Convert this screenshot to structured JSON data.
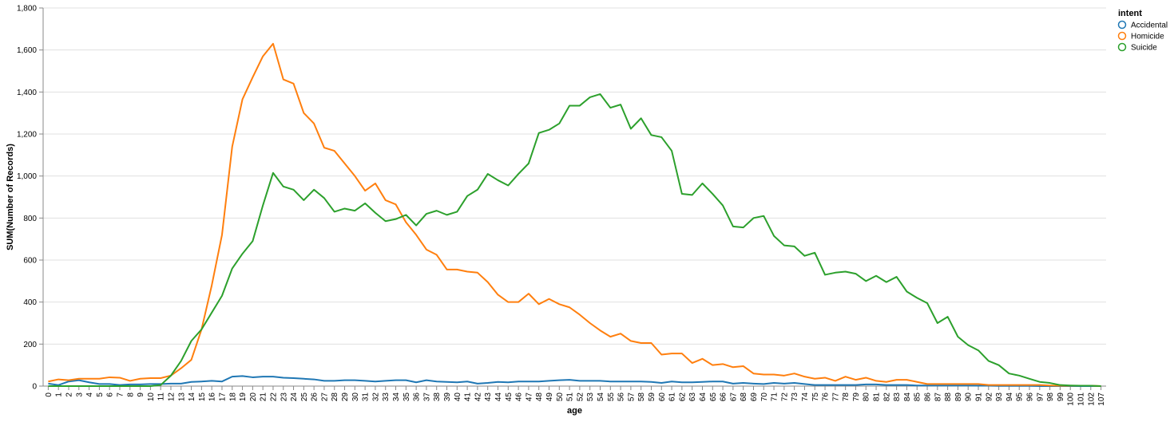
{
  "chart_data": {
    "type": "line",
    "xlabel": "age",
    "ylabel": "SUM(Number of Records)",
    "ylim": [
      0,
      1800
    ],
    "y_ticks": [
      "0",
      "200",
      "400",
      "600",
      "800",
      "1,000",
      "1,200",
      "1,400",
      "1,600",
      "1,800"
    ],
    "grid": true,
    "legend_position": "top-right",
    "legend_title": "intent",
    "x": [
      0,
      1,
      2,
      3,
      4,
      5,
      6,
      7,
      8,
      9,
      10,
      11,
      12,
      13,
      14,
      15,
      16,
      17,
      18,
      19,
      20,
      21,
      22,
      23,
      24,
      25,
      26,
      27,
      28,
      29,
      30,
      31,
      32,
      33,
      34,
      35,
      36,
      37,
      38,
      39,
      40,
      41,
      42,
      43,
      44,
      45,
      46,
      47,
      48,
      49,
      50,
      51,
      52,
      53,
      54,
      55,
      56,
      57,
      58,
      59,
      60,
      61,
      62,
      63,
      64,
      65,
      66,
      67,
      68,
      69,
      70,
      71,
      72,
      73,
      74,
      75,
      76,
      77,
      78,
      79,
      80,
      81,
      82,
      83,
      84,
      85,
      86,
      87,
      88,
      89,
      90,
      91,
      92,
      93,
      94,
      95,
      96,
      97,
      98,
      99,
      100,
      101,
      102,
      107
    ],
    "series": [
      {
        "name": "Accidental",
        "color": "#1f77b4",
        "values": [
          12,
          5,
          22,
          28,
          18,
          10,
          10,
          5,
          8,
          8,
          10,
          10,
          12,
          12,
          20,
          22,
          25,
          22,
          45,
          48,
          42,
          45,
          45,
          40,
          38,
          35,
          32,
          25,
          25,
          28,
          28,
          25,
          22,
          25,
          28,
          28,
          18,
          28,
          22,
          20,
          18,
          22,
          12,
          15,
          20,
          18,
          22,
          22,
          22,
          25,
          28,
          30,
          25,
          25,
          25,
          22,
          22,
          22,
          22,
          20,
          15,
          22,
          18,
          18,
          20,
          22,
          22,
          12,
          15,
          12,
          10,
          15,
          12,
          15,
          10,
          5,
          5,
          5,
          5,
          5,
          8,
          8,
          5,
          5,
          5,
          3,
          3,
          3,
          3,
          3,
          3,
          2,
          2,
          1,
          1,
          1,
          1,
          0,
          0,
          0,
          0,
          0,
          0,
          0
        ]
      },
      {
        "name": "Homicide",
        "color": "#ff7f0e",
        "values": [
          22,
          32,
          28,
          35,
          35,
          35,
          42,
          40,
          25,
          35,
          38,
          38,
          50,
          85,
          125,
          270,
          480,
          720,
          1140,
          1365,
          1470,
          1570,
          1630,
          1460,
          1440,
          1300,
          1250,
          1135,
          1120,
          1060,
          1000,
          930,
          965,
          885,
          865,
          780,
          720,
          650,
          625,
          555,
          555,
          545,
          540,
          495,
          435,
          400,
          400,
          440,
          390,
          415,
          390,
          375,
          340,
          300,
          265,
          235,
          250,
          215,
          205,
          205,
          150,
          155,
          155,
          110,
          130,
          100,
          105,
          90,
          95,
          60,
          55,
          55,
          50,
          60,
          45,
          35,
          40,
          25,
          45,
          30,
          40,
          25,
          20,
          30,
          30,
          20,
          10,
          10,
          10,
          10,
          10,
          10,
          5,
          5,
          5,
          5,
          5,
          5,
          3,
          2,
          2,
          2,
          2,
          0
        ]
      },
      {
        "name": "Suicide",
        "color": "#2ca02c",
        "values": [
          0,
          0,
          0,
          0,
          0,
          0,
          0,
          0,
          0,
          0,
          0,
          5,
          50,
          120,
          215,
          270,
          350,
          430,
          560,
          630,
          690,
          860,
          1015,
          950,
          935,
          885,
          935,
          895,
          830,
          845,
          835,
          870,
          825,
          785,
          795,
          815,
          765,
          820,
          835,
          815,
          830,
          905,
          935,
          1010,
          980,
          955,
          1010,
          1060,
          1205,
          1220,
          1250,
          1335,
          1335,
          1375,
          1390,
          1325,
          1340,
          1225,
          1275,
          1195,
          1185,
          1120,
          915,
          910,
          965,
          915,
          860,
          760,
          755,
          800,
          810,
          715,
          670,
          665,
          620,
          635,
          530,
          540,
          545,
          535,
          500,
          525,
          495,
          520,
          450,
          420,
          395,
          300,
          330,
          235,
          195,
          170,
          120,
          100,
          60,
          50,
          35,
          20,
          15,
          5,
          3,
          2,
          2,
          0
        ]
      }
    ]
  }
}
